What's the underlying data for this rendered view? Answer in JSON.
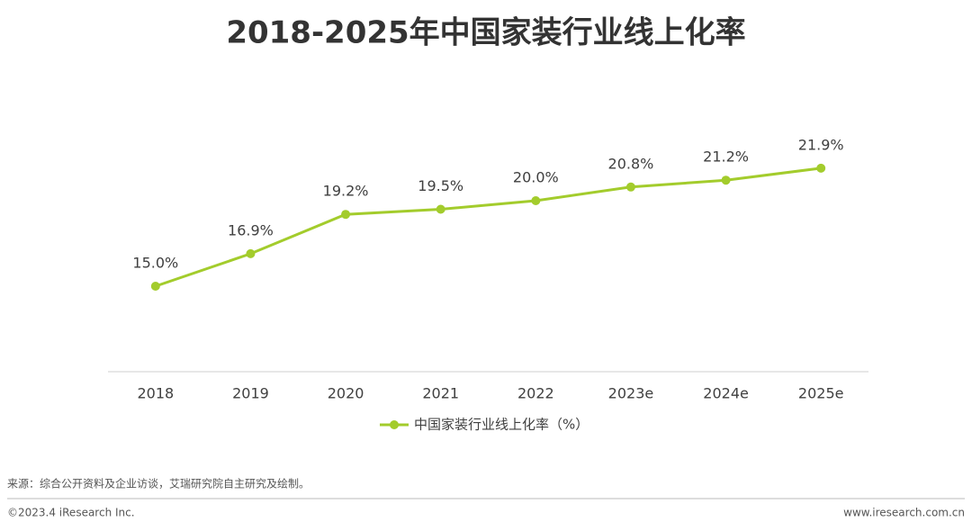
{
  "chart_data": {
    "type": "line",
    "title": "2018-2025年中国家装行业线上化率",
    "categories": [
      "2018",
      "2019",
      "2020",
      "2021",
      "2022",
      "2023e",
      "2024e",
      "2025e"
    ],
    "series": [
      {
        "name": "中国家装行业线上化率（%）",
        "color": "#a3cc2c",
        "values": [
          15.0,
          16.9,
          19.2,
          19.5,
          20.0,
          20.8,
          21.2,
          21.9
        ],
        "value_labels": [
          "15.0%",
          "16.9%",
          "19.2%",
          "19.5%",
          "20.0%",
          "20.8%",
          "21.2%",
          "21.9%"
        ]
      }
    ],
    "ylim": [
      10,
      25
    ],
    "legend": "bottom",
    "source": "来源：综合公开资料及企业访谈，艾瑞研究院自主研究及绘制。",
    "copyright": "©2023.4 iResearch Inc.",
    "website": "www.iresearch.com.cn"
  }
}
